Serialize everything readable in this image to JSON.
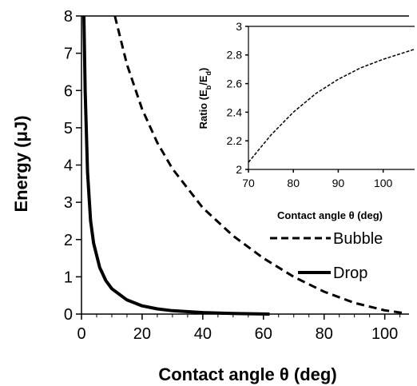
{
  "chart_data": [
    {
      "type": "line",
      "xlabel": "Contact angle θ (deg)",
      "ylabel": "Energy (μJ)",
      "xlim": [
        0,
        108
      ],
      "ylim": [
        0,
        8
      ],
      "x_ticks": [
        "0",
        "20",
        "40",
        "60",
        "80",
        "100"
      ],
      "y_ticks": [
        "0",
        "1",
        "2",
        "3",
        "4",
        "5",
        "6",
        "7",
        "8"
      ],
      "grid": false,
      "legend_placement": "right",
      "series": [
        {
          "name": "Bubble",
          "style": "dashed",
          "color": "#000000",
          "x": [
            11,
            15,
            20,
            25,
            30,
            40,
            50,
            60,
            70,
            80,
            90,
            100,
            107
          ],
          "y": [
            8.0,
            6.7,
            5.5,
            4.6,
            3.9,
            2.85,
            2.1,
            1.5,
            1.0,
            0.6,
            0.3,
            0.1,
            0.02
          ]
        },
        {
          "name": "Drop",
          "style": "solid",
          "color": "#000000",
          "x": [
            0.8,
            1.2,
            2,
            3,
            4,
            6,
            8,
            10,
            15,
            20,
            25,
            30,
            40,
            50,
            62
          ],
          "y": [
            8.0,
            6.0,
            3.8,
            2.5,
            1.9,
            1.25,
            0.9,
            0.68,
            0.38,
            0.22,
            0.14,
            0.09,
            0.04,
            0.015,
            0.0
          ]
        }
      ]
    },
    {
      "type": "line",
      "xlabel": "Contact angle θ (deg)",
      "ylabel_main": "Ratio (E",
      "ylabel_sub1": "b",
      "ylabel_mid": "/E",
      "ylabel_sub2": "d",
      "ylabel_end": ")",
      "xlim": [
        70,
        107
      ],
      "ylim": [
        2,
        3
      ],
      "x_ticks": [
        "70",
        "80",
        "90",
        "100"
      ],
      "y_ticks": [
        "2",
        "2.2",
        "2.4",
        "2.6",
        "2.8",
        "3"
      ],
      "grid": false,
      "series": [
        {
          "style": "dashed",
          "color": "#000000",
          "x": [
            70,
            75,
            80,
            85,
            90,
            95,
            100,
            107
          ],
          "y": [
            2.05,
            2.24,
            2.4,
            2.53,
            2.63,
            2.71,
            2.77,
            2.84
          ]
        }
      ]
    }
  ]
}
